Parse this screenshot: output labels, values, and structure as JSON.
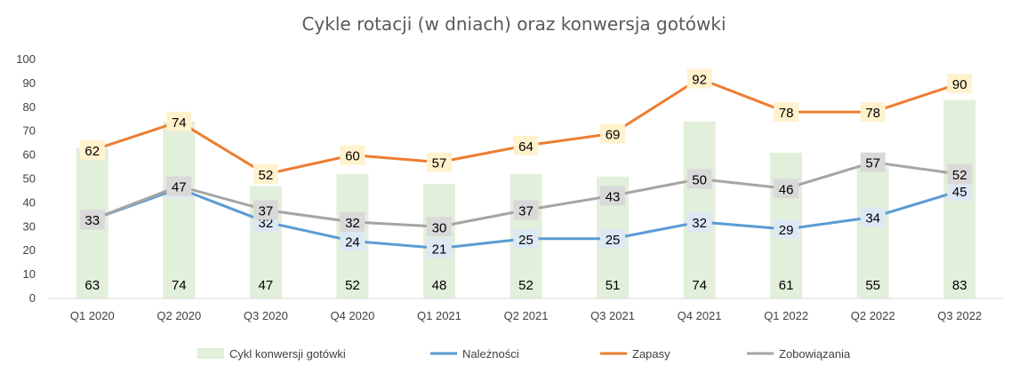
{
  "chart_data": {
    "type": "bar",
    "title": "Cykle rotacji (w dniach) oraz konwersja gotówki",
    "xlabel": "",
    "ylabel": "",
    "ylim": [
      0,
      100
    ],
    "yticks": [
      0,
      10,
      20,
      30,
      40,
      50,
      60,
      70,
      80,
      90,
      100
    ],
    "grid": false,
    "legend_position": "bottom",
    "categories": [
      "Q1 2020",
      "Q2 2020",
      "Q3 2020",
      "Q4 2020",
      "Q1 2021",
      "Q2 2021",
      "Q3 2021",
      "Q4 2021",
      "Q1 2022",
      "Q2 2022",
      "Q3 2022"
    ],
    "series": [
      {
        "name": "Cykl konwersji gotówki",
        "type": "bar",
        "color": "#e2efda",
        "label_bg": "none",
        "values": [
          63,
          74,
          47,
          52,
          48,
          52,
          51,
          74,
          61,
          55,
          83
        ]
      },
      {
        "name": "Należności",
        "type": "line",
        "color": "#5b9bd5",
        "label_bg": "#dde8f5",
        "values": [
          33,
          46,
          32,
          24,
          21,
          25,
          25,
          32,
          29,
          34,
          45
        ]
      },
      {
        "name": "Zapasy",
        "type": "line",
        "color": "#ed7d31",
        "label_bg": "#fff2cc",
        "values": [
          62,
          74,
          52,
          60,
          57,
          64,
          69,
          92,
          78,
          78,
          90
        ]
      },
      {
        "name": "Zobowiązania",
        "type": "line",
        "color": "#a5a5a5",
        "label_bg": "#d9d9d9",
        "values": [
          33,
          47,
          37,
          32,
          30,
          37,
          43,
          50,
          46,
          57,
          52
        ]
      }
    ]
  }
}
